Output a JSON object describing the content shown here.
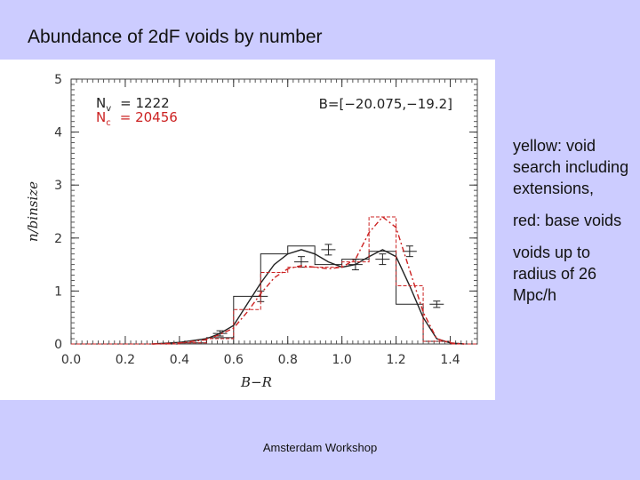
{
  "slide": {
    "title": "Abundance of 2dF voids by number",
    "notes": [
      "yellow:   void search including extensions,",
      "red: base voids",
      "voids up to radius of   26 Mpc/h"
    ],
    "footer": "Amsterdam Workshop",
    "background_color": "#ccccff"
  },
  "chart_data": {
    "type": "line",
    "title": "",
    "xlabel": "B−R",
    "ylabel": "n/binsize",
    "xlim": [
      0.0,
      1.5
    ],
    "ylim": [
      0,
      5
    ],
    "x_ticks": [
      "0.0",
      "0.2",
      "0.4",
      "0.6",
      "0.8",
      "1.0",
      "1.2",
      "1.4"
    ],
    "y_ticks": [
      "0",
      "1",
      "2",
      "3",
      "4",
      "5"
    ],
    "annotation": "B=[−20.075,−19.2]",
    "legend": {
      "position": "top-left",
      "entries": [
        {
          "label": "N",
          "sub": "v",
          "value": "= 1222",
          "color": "#222222"
        },
        {
          "label": "N",
          "sub": "c",
          "value": "= 20456",
          "color": "#cc2222"
        }
      ]
    },
    "series": [
      {
        "name": "N_v",
        "color": "#222222",
        "histogram": {
          "edges": [
            0.0,
            0.1,
            0.2,
            0.3,
            0.4,
            0.5,
            0.6,
            0.7,
            0.8,
            0.9,
            1.0,
            1.1,
            1.2,
            1.3,
            1.4,
            1.5
          ],
          "values": [
            0,
            0,
            0,
            0,
            0.02,
            0.12,
            0.9,
            1.7,
            1.85,
            1.5,
            1.6,
            1.75,
            0.75,
            0.05,
            0
          ]
        },
        "curve": {
          "x": [
            0.3,
            0.4,
            0.5,
            0.55,
            0.6,
            0.65,
            0.7,
            0.75,
            0.8,
            0.85,
            0.9,
            0.95,
            1.0,
            1.05,
            1.1,
            1.15,
            1.2,
            1.25,
            1.3,
            1.35,
            1.4,
            1.45
          ],
          "y": [
            0.0,
            0.03,
            0.1,
            0.2,
            0.35,
            0.75,
            1.15,
            1.5,
            1.7,
            1.78,
            1.7,
            1.55,
            1.45,
            1.5,
            1.65,
            1.78,
            1.65,
            1.1,
            0.5,
            0.1,
            0.02,
            0.0
          ]
        },
        "errorbars": [
          {
            "x": 0.55,
            "y": 0.2,
            "err": 0.05
          },
          {
            "x": 0.7,
            "y": 0.9,
            "err": 0.1
          },
          {
            "x": 0.85,
            "y": 1.55,
            "err": 0.1
          },
          {
            "x": 0.95,
            "y": 1.78,
            "err": 0.1
          },
          {
            "x": 1.05,
            "y": 1.5,
            "err": 0.1
          },
          {
            "x": 1.15,
            "y": 1.6,
            "err": 0.1
          },
          {
            "x": 1.25,
            "y": 1.75,
            "err": 0.1
          },
          {
            "x": 1.35,
            "y": 0.75,
            "err": 0.06
          }
        ]
      },
      {
        "name": "N_c",
        "color": "#cc2222",
        "histogram": {
          "edges": [
            0.0,
            0.1,
            0.2,
            0.3,
            0.4,
            0.5,
            0.6,
            0.7,
            0.8,
            0.9,
            1.0,
            1.1,
            1.2,
            1.3,
            1.4,
            1.5
          ],
          "values": [
            0,
            0,
            0,
            0,
            0.02,
            0.1,
            0.65,
            1.35,
            1.45,
            1.45,
            1.55,
            2.4,
            1.1,
            0.05,
            0
          ]
        },
        "curve": {
          "x": [
            0.3,
            0.4,
            0.5,
            0.55,
            0.6,
            0.65,
            0.7,
            0.75,
            0.8,
            0.85,
            0.9,
            0.95,
            1.0,
            1.05,
            1.1,
            1.15,
            1.2,
            1.25,
            1.3,
            1.35,
            1.4,
            1.45
          ],
          "y": [
            0.0,
            0.02,
            0.08,
            0.18,
            0.3,
            0.6,
            0.95,
            1.25,
            1.42,
            1.48,
            1.45,
            1.42,
            1.45,
            1.6,
            2.1,
            2.4,
            2.2,
            1.4,
            0.6,
            0.1,
            0.02,
            0.0
          ]
        }
      }
    ]
  }
}
